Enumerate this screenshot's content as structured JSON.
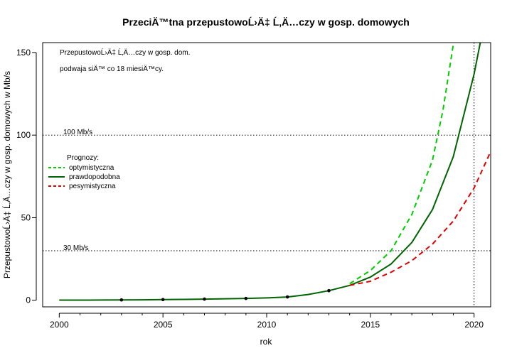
{
  "chart_data": {
    "type": "line",
    "title": "PrzeciÄ™tna przepustowoĹ›Ä‡ Ĺ‚Ä…czy w gosp. domowych",
    "xlabel": "rok",
    "ylabel": "PrzepustowoĹ›Ä‡ Ĺ‚Ä…czy w gosp. domowych w Mb/s",
    "xlim": [
      1999.2,
      2020.8
    ],
    "ylim": [
      -4,
      156
    ],
    "x_ticks": [
      2000,
      2005,
      2010,
      2015,
      2020
    ],
    "y_ticks": [
      0,
      50,
      100,
      150
    ],
    "x_minor_step": 1,
    "note_lines": [
      "PrzepustowoĹ›Ä‡ Ĺ‚Ä…czy w gosp. dom.",
      "podwaja siÄ™ co 18 miesiÄ™cy."
    ],
    "reference_lines": [
      {
        "axis": "y",
        "value": 100,
        "label": "100 Mb/s"
      },
      {
        "axis": "y",
        "value": 30,
        "label": "30 Mb/s"
      },
      {
        "axis": "x",
        "value": 2020,
        "label": ""
      }
    ],
    "legend": {
      "title": "Prognozy:",
      "position": "left-center",
      "entries": [
        {
          "label": "optymistyczna",
          "color": "#00cd00",
          "dash": "dashed"
        },
        {
          "label": "prawdopodobna",
          "color": "#006400",
          "dash": "solid"
        },
        {
          "label": "pesymistyczna",
          "color": "#e00000",
          "dash": "dashed"
        }
      ]
    },
    "points": {
      "x": [
        2003,
        2005,
        2007,
        2009,
        2011,
        2013
      ],
      "y": [
        0.2,
        0.4,
        0.7,
        1.1,
        2.0,
        5.8
      ]
    },
    "series": [
      {
        "name": "prawdopodobna",
        "color": "#006400",
        "dash": "solid",
        "x": [
          2000,
          2001,
          2002,
          2003,
          2004,
          2005,
          2006,
          2007,
          2008,
          2009,
          2010,
          2011,
          2012,
          2013,
          2014,
          2015,
          2016,
          2017,
          2018,
          2019,
          2020,
          2020.3
        ],
        "y": [
          0.1,
          0.1,
          0.15,
          0.2,
          0.25,
          0.4,
          0.5,
          0.7,
          0.9,
          1.1,
          1.4,
          2.0,
          3.5,
          5.8,
          9.0,
          14,
          22,
          35,
          55,
          87,
          137,
          156
        ]
      },
      {
        "name": "optymistyczna",
        "color": "#00cd00",
        "dash": "dashed",
        "x": [
          2014,
          2015,
          2016,
          2017,
          2018,
          2018.5,
          2019
        ],
        "y": [
          10,
          18,
          30,
          52,
          85,
          115,
          155
        ]
      },
      {
        "name": "pesymistyczna",
        "color": "#e00000",
        "dash": "dashed",
        "x": [
          2014,
          2015,
          2016,
          2017,
          2018,
          2019,
          2020,
          2020.8
        ],
        "y": [
          9,
          11.5,
          17,
          24,
          34,
          48,
          68,
          90
        ]
      }
    ]
  }
}
